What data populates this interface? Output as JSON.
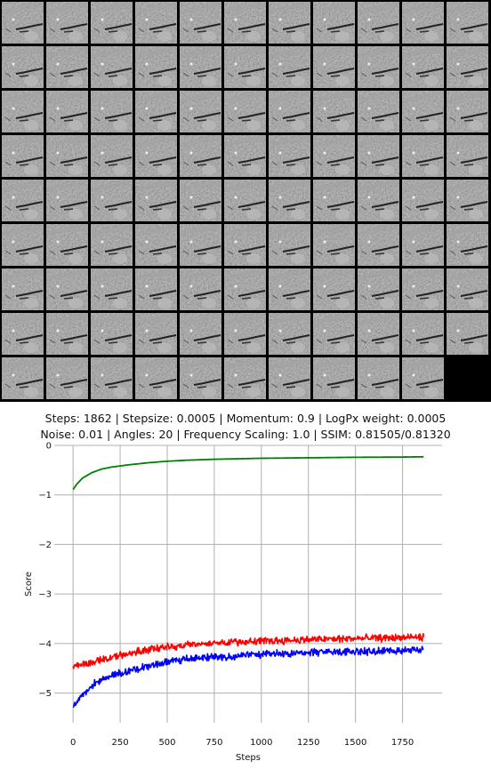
{
  "title_lines": [
    "Steps: 1862 | Stepsize: 0.0005 | Momentum: 0.9 | LogPx weight: 0.0005",
    "Noise: 0.01 | Angles: 20 | Frequency Scaling: 1.0 | SSIM: 0.81505/0.81320"
  ],
  "thumbnail_grid": {
    "columns": 11,
    "rows": 9,
    "images": 98,
    "empty_cell_color": "#000000",
    "background": "#000000"
  },
  "chart_data": {
    "type": "line",
    "xlabel": "Steps",
    "ylabel": "Score",
    "xlim": [
      -100,
      1960
    ],
    "ylim": [
      -5.6,
      0
    ],
    "xticks": [
      0,
      250,
      500,
      750,
      1000,
      1250,
      1500,
      1750
    ],
    "yticks": [
      0,
      -1,
      -2,
      -3,
      -4,
      -5
    ],
    "grid": true,
    "series": [
      {
        "color": "#008000",
        "noisy": false,
        "x": [
          0,
          20,
          50,
          100,
          150,
          200,
          300,
          400,
          500,
          600,
          750,
          1000,
          1250,
          1500,
          1750,
          1862
        ],
        "values": [
          -0.89,
          -0.78,
          -0.66,
          -0.55,
          -0.48,
          -0.44,
          -0.39,
          -0.35,
          -0.32,
          -0.3,
          -0.28,
          -0.26,
          -0.25,
          -0.24,
          -0.235,
          -0.23
        ]
      },
      {
        "color": "#ff0000",
        "noisy": true,
        "x": [
          0,
          100,
          200,
          300,
          400,
          500,
          750,
          1000,
          1250,
          1500,
          1750,
          1862
        ],
        "values": [
          -4.45,
          -4.38,
          -4.28,
          -4.2,
          -4.12,
          -4.07,
          -3.98,
          -3.95,
          -3.92,
          -3.9,
          -3.88,
          -3.87
        ]
      },
      {
        "color": "#0000ff",
        "noisy": true,
        "x": [
          0,
          25,
          50,
          100,
          150,
          200,
          300,
          400,
          500,
          600,
          750,
          1000,
          1250,
          1500,
          1750,
          1862
        ],
        "values": [
          -5.3,
          -5.15,
          -5.02,
          -4.85,
          -4.73,
          -4.64,
          -4.55,
          -4.45,
          -4.38,
          -4.32,
          -4.27,
          -4.22,
          -4.18,
          -4.16,
          -4.14,
          -4.12
        ]
      }
    ]
  }
}
